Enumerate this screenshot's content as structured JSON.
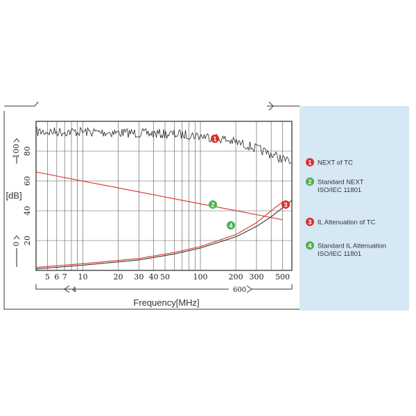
{
  "chart_data": {
    "type": "line",
    "x_scale": "log",
    "xlim": [
      4,
      600
    ],
    "ylim": [
      0,
      100
    ],
    "xlabel": "Frequency[MHz]",
    "ylabel": "[dB]",
    "x_ticks": [
      5,
      6,
      7,
      10,
      20,
      30,
      40,
      50,
      100,
      200,
      300,
      500
    ],
    "x_tick_labels": [
      "5",
      "6",
      "7",
      "10",
      "20",
      "30",
      "40",
      "50",
      "100",
      "200",
      "300",
      "500"
    ],
    "y_ticks": [
      20,
      40,
      60,
      80
    ],
    "y_tick_labels": [
      "20",
      "40",
      "60",
      "80"
    ],
    "y_top_label": "100",
    "y_zero_label": "0",
    "range_start_label": "4",
    "range_end_label": "600",
    "grid": true,
    "legend_position": "right",
    "series": [
      {
        "name": "NEXT of TC",
        "marker": "1",
        "color": "#222222",
        "marker_color": "#d9302c",
        "x": [
          4,
          10,
          30,
          80,
          140,
          250,
          400,
          600
        ],
        "y": [
          93,
          93,
          92,
          91,
          89,
          84,
          78,
          72
        ]
      },
      {
        "name": "Standard NEXT ISO/IEC 11801",
        "marker": "2",
        "color": "#d9302c",
        "marker_color": "#4caf50",
        "x": [
          4,
          500
        ],
        "y": [
          66,
          34
        ]
      },
      {
        "name": "IL Attenuation of TC",
        "marker": "3",
        "color": "#d9302c",
        "marker_color": "#d9302c",
        "x": [
          4,
          10,
          30,
          60,
          100,
          200,
          300,
          400,
          500
        ],
        "y": [
          2,
          4.5,
          8,
          12,
          16,
          24,
          32,
          40,
          46
        ]
      },
      {
        "name": "Standard IL Attenuation ISO/IEC 11801",
        "marker": "4",
        "color": "#333333",
        "marker_color": "#4caf50",
        "x": [
          4,
          10,
          30,
          60,
          100,
          200,
          300,
          400,
          500,
          600
        ],
        "y": [
          1,
          3.5,
          7,
          11,
          15,
          22.5,
          29.5,
          36,
          42,
          47
        ]
      }
    ],
    "legend": [
      {
        "marker": "1",
        "color": "#d9302c",
        "line1": "NEXT of TC",
        "line2": ""
      },
      {
        "marker": "2",
        "color": "#4caf50",
        "line1": "Standard NEXT",
        "line2": "ISO/IEC 11801"
      },
      {
        "marker": "3",
        "color": "#d9302c",
        "line1": "IL Attenuation of TC",
        "line2": ""
      },
      {
        "marker": "4",
        "color": "#4caf50",
        "line1": "Standard IL Attenuation",
        "line2": "ISO/IEC 11801"
      }
    ],
    "marker_points": [
      {
        "label": "1",
        "x": 130,
        "y": 87,
        "color": "#d9302c"
      },
      {
        "label": "2",
        "x": 130,
        "y": 43,
        "color": "#4caf50"
      },
      {
        "label": "3",
        "x": 575,
        "y": 43,
        "color": "#d9302c"
      },
      {
        "label": "4",
        "x": 200,
        "y": 29,
        "color": "#4caf50"
      }
    ]
  }
}
